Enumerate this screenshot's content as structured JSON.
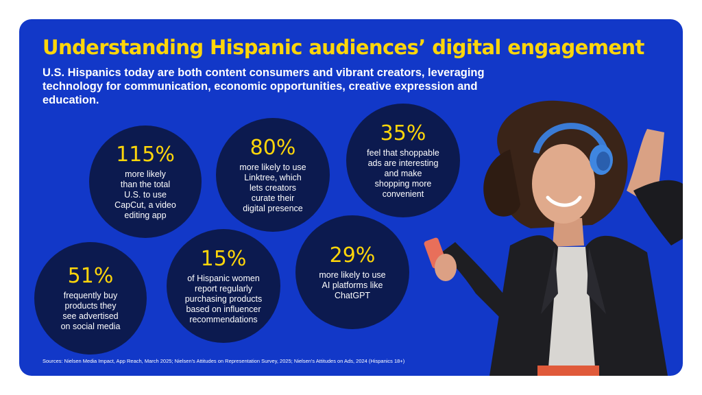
{
  "title": "Understanding Hispanic audiences’ digital engagement",
  "subtitle": "U.S. Hispanics today are both content consumers and vibrant creators, leveraging technology for communication, economic opportunities, creative expression and education.",
  "stats": [
    {
      "percent": "115%",
      "lines": [
        "more likely",
        "than the total",
        "U.S. to use",
        "CapCut, a video",
        "editing app"
      ]
    },
    {
      "percent": "80%",
      "lines": [
        "more likely to use",
        "Linktree, which",
        "lets creators",
        "curate their",
        "digital presence"
      ]
    },
    {
      "percent": "35%",
      "lines": [
        "feel that shoppable",
        "ads are interesting",
        "and make",
        "shopping more",
        "convenient"
      ]
    },
    {
      "percent": "51%",
      "lines": [
        "frequently buy",
        "products they",
        "see advertised",
        "on social media"
      ]
    },
    {
      "percent": "15%",
      "lines": [
        "of Hispanic women",
        "report regularly",
        "purchasing products",
        "based on influencer",
        "recommendations"
      ]
    },
    {
      "percent": "29%",
      "lines": [
        "more likely to use",
        "AI platforms like",
        "ChatGPT"
      ]
    }
  ],
  "sources": "Sources: Nielsen Media Impact, App Reach, March 2025; Nielsen's Attitudes on Representation Survey, 2025; Nielsen's Attitudes on Ads, 2024 (Hispanics 18+)",
  "colors": {
    "background": "#1238c8",
    "circle": "#0c1a4f",
    "accent": "#ffd60a",
    "text": "#ffffff"
  }
}
